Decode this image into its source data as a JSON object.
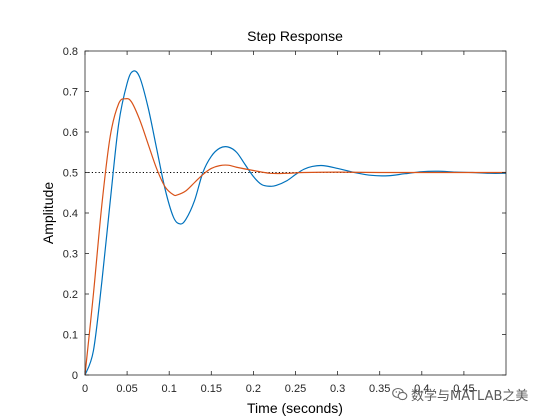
{
  "chart_data": {
    "type": "line",
    "title": "Step Response",
    "xlabel": "Time (seconds)",
    "ylabel": "Amplitude",
    "xlim": [
      0,
      0.5
    ],
    "ylim": [
      0,
      0.8
    ],
    "xticks": [
      0,
      0.05,
      0.1,
      0.15,
      0.2,
      0.25,
      0.3,
      0.35,
      0.4,
      0.45
    ],
    "xtick_labels": [
      "0",
      "0.05",
      "0.1",
      "0.15",
      "0.2",
      "0.25",
      "0.3",
      "0.35",
      "0.4",
      "0.45"
    ],
    "yticks": [
      0,
      0.1,
      0.2,
      0.3,
      0.4,
      0.5,
      0.6,
      0.7,
      0.8
    ],
    "ytick_labels": [
      "0",
      "0.1",
      "0.2",
      "0.3",
      "0.4",
      "0.5",
      "0.6",
      "0.7",
      "0.8"
    ],
    "grid": false,
    "reference_line": {
      "y": 0.5,
      "style": "dotted",
      "color": "#000000"
    },
    "series": [
      {
        "color": "#0072BD",
        "x": [
          0,
          0.01,
          0.02,
          0.03,
          0.04,
          0.05,
          0.057,
          0.065,
          0.075,
          0.085,
          0.095,
          0.105,
          0.113,
          0.12,
          0.13,
          0.14,
          0.15,
          0.16,
          0.17,
          0.18,
          0.19,
          0.2,
          0.21,
          0.22,
          0.227,
          0.24,
          0.25,
          0.26,
          0.27,
          0.283,
          0.3,
          0.31,
          0.32,
          0.34,
          0.36,
          0.38,
          0.4,
          0.42,
          0.44,
          0.46,
          0.48,
          0.5
        ],
        "y": [
          0,
          0.06,
          0.23,
          0.43,
          0.62,
          0.72,
          0.75,
          0.735,
          0.66,
          0.56,
          0.46,
          0.39,
          0.373,
          0.385,
          0.43,
          0.5,
          0.54,
          0.56,
          0.563,
          0.55,
          0.52,
          0.49,
          0.47,
          0.466,
          0.468,
          0.48,
          0.495,
          0.508,
          0.515,
          0.517,
          0.51,
          0.505,
          0.5,
          0.493,
          0.492,
          0.497,
          0.502,
          0.503,
          0.501,
          0.5,
          0.498,
          0.498
        ]
      },
      {
        "color": "#D95319",
        "x": [
          0,
          0.01,
          0.02,
          0.03,
          0.04,
          0.048,
          0.055,
          0.065,
          0.075,
          0.085,
          0.095,
          0.105,
          0.11,
          0.12,
          0.13,
          0.14,
          0.15,
          0.16,
          0.17,
          0.18,
          0.2,
          0.22,
          0.24,
          0.26,
          0.3,
          0.35,
          0.4,
          0.45,
          0.5
        ],
        "y": [
          0,
          0.2,
          0.42,
          0.59,
          0.67,
          0.682,
          0.675,
          0.63,
          0.57,
          0.51,
          0.465,
          0.445,
          0.445,
          0.455,
          0.475,
          0.495,
          0.51,
          0.517,
          0.518,
          0.513,
          0.505,
          0.498,
          0.498,
          0.5,
          0.501,
          0.5,
          0.5,
          0.5,
          0.5
        ]
      }
    ]
  },
  "watermark": {
    "text": "数学与MATLAB之美",
    "icon": "wechat-icon"
  }
}
